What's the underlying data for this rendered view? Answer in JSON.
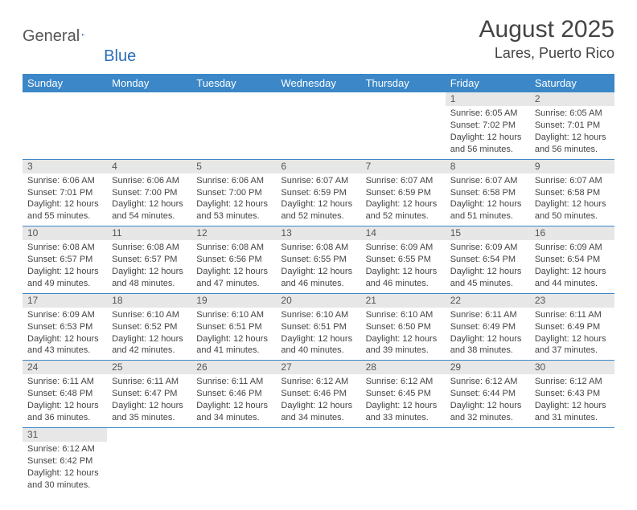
{
  "logo": {
    "text1": "General",
    "text2": "Blue"
  },
  "title": "August 2025",
  "location": "Lares, Puerto Rico",
  "headers": [
    "Sunday",
    "Monday",
    "Tuesday",
    "Wednesday",
    "Thursday",
    "Friday",
    "Saturday"
  ],
  "colors": {
    "header_bg": "#3b87c8",
    "header_fg": "#ffffff",
    "daynum_bg": "#e7e7e7",
    "row_border": "#3b87c8",
    "text": "#444444"
  },
  "weeks": [
    [
      null,
      null,
      null,
      null,
      null,
      {
        "n": "1",
        "sr": "6:05 AM",
        "ss": "7:02 PM",
        "dl": "12 hours and 56 minutes."
      },
      {
        "n": "2",
        "sr": "6:05 AM",
        "ss": "7:01 PM",
        "dl": "12 hours and 56 minutes."
      }
    ],
    [
      {
        "n": "3",
        "sr": "6:06 AM",
        "ss": "7:01 PM",
        "dl": "12 hours and 55 minutes."
      },
      {
        "n": "4",
        "sr": "6:06 AM",
        "ss": "7:00 PM",
        "dl": "12 hours and 54 minutes."
      },
      {
        "n": "5",
        "sr": "6:06 AM",
        "ss": "7:00 PM",
        "dl": "12 hours and 53 minutes."
      },
      {
        "n": "6",
        "sr": "6:07 AM",
        "ss": "6:59 PM",
        "dl": "12 hours and 52 minutes."
      },
      {
        "n": "7",
        "sr": "6:07 AM",
        "ss": "6:59 PM",
        "dl": "12 hours and 52 minutes."
      },
      {
        "n": "8",
        "sr": "6:07 AM",
        "ss": "6:58 PM",
        "dl": "12 hours and 51 minutes."
      },
      {
        "n": "9",
        "sr": "6:07 AM",
        "ss": "6:58 PM",
        "dl": "12 hours and 50 minutes."
      }
    ],
    [
      {
        "n": "10",
        "sr": "6:08 AM",
        "ss": "6:57 PM",
        "dl": "12 hours and 49 minutes."
      },
      {
        "n": "11",
        "sr": "6:08 AM",
        "ss": "6:57 PM",
        "dl": "12 hours and 48 minutes."
      },
      {
        "n": "12",
        "sr": "6:08 AM",
        "ss": "6:56 PM",
        "dl": "12 hours and 47 minutes."
      },
      {
        "n": "13",
        "sr": "6:08 AM",
        "ss": "6:55 PM",
        "dl": "12 hours and 46 minutes."
      },
      {
        "n": "14",
        "sr": "6:09 AM",
        "ss": "6:55 PM",
        "dl": "12 hours and 46 minutes."
      },
      {
        "n": "15",
        "sr": "6:09 AM",
        "ss": "6:54 PM",
        "dl": "12 hours and 45 minutes."
      },
      {
        "n": "16",
        "sr": "6:09 AM",
        "ss": "6:54 PM",
        "dl": "12 hours and 44 minutes."
      }
    ],
    [
      {
        "n": "17",
        "sr": "6:09 AM",
        "ss": "6:53 PM",
        "dl": "12 hours and 43 minutes."
      },
      {
        "n": "18",
        "sr": "6:10 AM",
        "ss": "6:52 PM",
        "dl": "12 hours and 42 minutes."
      },
      {
        "n": "19",
        "sr": "6:10 AM",
        "ss": "6:51 PM",
        "dl": "12 hours and 41 minutes."
      },
      {
        "n": "20",
        "sr": "6:10 AM",
        "ss": "6:51 PM",
        "dl": "12 hours and 40 minutes."
      },
      {
        "n": "21",
        "sr": "6:10 AM",
        "ss": "6:50 PM",
        "dl": "12 hours and 39 minutes."
      },
      {
        "n": "22",
        "sr": "6:11 AM",
        "ss": "6:49 PM",
        "dl": "12 hours and 38 minutes."
      },
      {
        "n": "23",
        "sr": "6:11 AM",
        "ss": "6:49 PM",
        "dl": "12 hours and 37 minutes."
      }
    ],
    [
      {
        "n": "24",
        "sr": "6:11 AM",
        "ss": "6:48 PM",
        "dl": "12 hours and 36 minutes."
      },
      {
        "n": "25",
        "sr": "6:11 AM",
        "ss": "6:47 PM",
        "dl": "12 hours and 35 minutes."
      },
      {
        "n": "26",
        "sr": "6:11 AM",
        "ss": "6:46 PM",
        "dl": "12 hours and 34 minutes."
      },
      {
        "n": "27",
        "sr": "6:12 AM",
        "ss": "6:46 PM",
        "dl": "12 hours and 34 minutes."
      },
      {
        "n": "28",
        "sr": "6:12 AM",
        "ss": "6:45 PM",
        "dl": "12 hours and 33 minutes."
      },
      {
        "n": "29",
        "sr": "6:12 AM",
        "ss": "6:44 PM",
        "dl": "12 hours and 32 minutes."
      },
      {
        "n": "30",
        "sr": "6:12 AM",
        "ss": "6:43 PM",
        "dl": "12 hours and 31 minutes."
      }
    ],
    [
      {
        "n": "31",
        "sr": "6:12 AM",
        "ss": "6:42 PM",
        "dl": "12 hours and 30 minutes."
      },
      null,
      null,
      null,
      null,
      null,
      null
    ]
  ]
}
